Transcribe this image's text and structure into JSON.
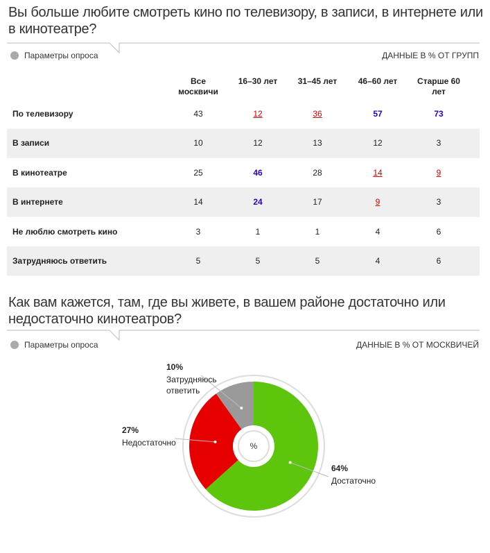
{
  "survey1": {
    "title": "Вы больше любите смотреть кино по телевизору, в записи, в интернете или в кинотеатре?",
    "params": "Параметры опроса",
    "units": "ДАННЫЕ В % ОТ ГРУПП"
  },
  "table": {
    "header": [
      "Все москвичи",
      "16–30 лет",
      "31–45 лет",
      "46–60 лет",
      "Старше 60 лет"
    ],
    "rows": [
      {
        "label": "По телевизору",
        "values": [
          43,
          12,
          36,
          57,
          73
        ],
        "colors": [
          null,
          "#d40000",
          "#d40000",
          "#2a00c8",
          "#2a00c8"
        ]
      },
      {
        "label": "В записи",
        "values": [
          10,
          12,
          13,
          12,
          3
        ],
        "colors": [
          null,
          null,
          null,
          null,
          null
        ]
      },
      {
        "label": "В кинотеатре",
        "values": [
          25,
          46,
          28,
          14,
          9
        ],
        "colors": [
          null,
          "#2a00c8",
          null,
          "#d40000",
          "#d40000"
        ]
      },
      {
        "label": "В интернете",
        "values": [
          14,
          24,
          17,
          9,
          3
        ],
        "colors": [
          null,
          "#2a00c8",
          null,
          "#d40000",
          null
        ]
      },
      {
        "label": "Не люблю смотреть кино",
        "values": [
          3,
          1,
          1,
          4,
          6
        ],
        "colors": [
          null,
          null,
          null,
          null,
          null
        ]
      },
      {
        "label": "Затрудняюсь ответить",
        "values": [
          5,
          5,
          5,
          4,
          6
        ],
        "colors": [
          null,
          null,
          null,
          null,
          null
        ]
      }
    ]
  },
  "survey2": {
    "title": "Как вам кажется, там, где вы живете, в вашем районе достаточно или недостаточно кинотеатров?",
    "params": "Параметры опроса",
    "units": "ДАННЫЕ В % ОТ МОСКВИЧЕЙ"
  },
  "pie": {
    "type": "pie",
    "center_label": "%",
    "categories": [
      "Достаточно",
      "Недостаточно",
      "Затрудняюсь ответить"
    ],
    "values": [
      64,
      27,
      10
    ],
    "value_labels": [
      "64%",
      "27%",
      "10%"
    ],
    "colors": [
      "#5cc50c",
      "#e60000",
      "#9a9a9a"
    ]
  }
}
